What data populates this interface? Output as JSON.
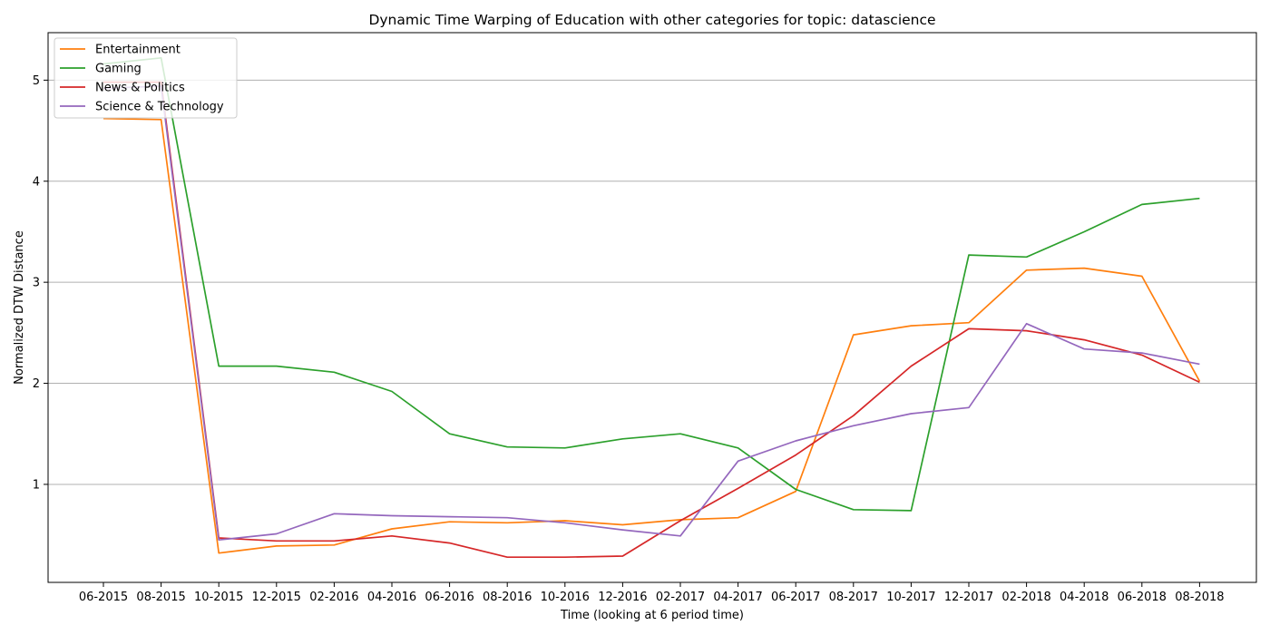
{
  "chart_data": {
    "type": "line",
    "title": "Dynamic Time Warping of Education with other categories for topic: datascience",
    "xlabel": "Time (looking at 6 period time)",
    "ylabel": "Normalized DTW Distance",
    "categories": [
      "06-2015",
      "08-2015",
      "10-2015",
      "12-2015",
      "02-2016",
      "04-2016",
      "06-2016",
      "08-2016",
      "10-2016",
      "12-2016",
      "02-2017",
      "04-2017",
      "06-2017",
      "08-2017",
      "10-2017",
      "12-2017",
      "02-2018",
      "04-2018",
      "06-2018",
      "08-2018"
    ],
    "ylim": [
      0.03,
      5.47
    ],
    "yticks": [
      "1",
      "2",
      "3",
      "4",
      "5"
    ],
    "grid": "y",
    "legend": "top-left",
    "series": [
      {
        "name": "Entertainment",
        "color": "#ff7f0e",
        "values": [
          4.62,
          4.61,
          0.32,
          0.39,
          0.4,
          0.56,
          0.63,
          0.62,
          0.64,
          0.6,
          0.65,
          0.67,
          0.93,
          2.48,
          2.57,
          2.6,
          3.12,
          3.14,
          3.06,
          2.02
        ]
      },
      {
        "name": "Gaming",
        "color": "#2ca02c",
        "values": [
          5.16,
          5.22,
          2.17,
          2.17,
          2.11,
          1.92,
          1.5,
          1.37,
          1.36,
          1.45,
          1.5,
          1.36,
          0.95,
          0.75,
          0.74,
          3.27,
          3.25,
          3.5,
          3.77,
          3.83
        ]
      },
      {
        "name": "News & Politics",
        "color": "#d62728",
        "values": [
          4.98,
          4.98,
          0.47,
          0.44,
          0.44,
          0.49,
          0.42,
          0.28,
          0.28,
          0.29,
          0.64,
          0.96,
          1.29,
          1.68,
          2.17,
          2.54,
          2.52,
          2.43,
          2.28,
          2.01
        ]
      },
      {
        "name": "Science & Technology",
        "color": "#9467bd",
        "values": [
          4.92,
          4.94,
          0.45,
          0.51,
          0.71,
          0.69,
          0.68,
          0.67,
          0.62,
          0.55,
          0.49,
          1.23,
          1.43,
          1.58,
          1.7,
          1.76,
          2.59,
          2.34,
          2.3,
          2.19
        ]
      }
    ]
  }
}
